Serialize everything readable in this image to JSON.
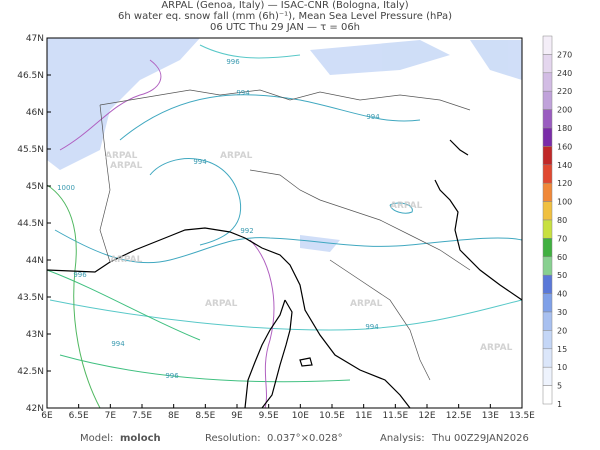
{
  "header": {
    "lines": [
      "ARPAL (Genoa, Italy)  —  ISAC-CNR (Bologna, Italy)",
      "6h water eq. snow fall (mm (6h)⁻¹), Mean Sea Level Pressure (hPa)",
      "06 UTC Thu 29 JAN  —  τ = 06h"
    ]
  },
  "map": {
    "lon_ticks": [
      "6E",
      "6.5E",
      "7E",
      "7.5E",
      "8E",
      "8.5E",
      "9E",
      "9.5E",
      "10E",
      "10.5E",
      "11E",
      "11.5E",
      "12E",
      "12.5E",
      "13E",
      "13.5E"
    ],
    "lat_ticks": [
      "42N",
      "42.5N",
      "43N",
      "43.5N",
      "44N",
      "44.5N",
      "45N",
      "45.5N",
      "46N",
      "46.5N",
      "47N"
    ],
    "contour_labels": [
      996,
      994,
      994,
      994,
      1000,
      992,
      996,
      994,
      994,
      996
    ],
    "watermark": "ARPAL"
  },
  "colorbar": {
    "labels": [
      270,
      240,
      220,
      200,
      180,
      160,
      140,
      120,
      100,
      80,
      70,
      60,
      50,
      40,
      30,
      20,
      15,
      10,
      5,
      1
    ],
    "colors": [
      "#f4eef8",
      "#e4d6ee",
      "#d2bce4",
      "#c0a2da",
      "#9a5cc0",
      "#7a2ca8",
      "#c02828",
      "#e04830",
      "#f08838",
      "#f0c040",
      "#c8e040",
      "#40b040",
      "#88d090",
      "#5a78d8",
      "#7fa0e8",
      "#a8c0f0",
      "#c4d6f6",
      "#dbe6fa",
      "#eef3fd",
      "#ffffff"
    ]
  },
  "footer": {
    "model_label": "Model:",
    "model": "moloch",
    "resolution_label": "Resolution:",
    "resolution": "0.037°×0.028°",
    "analysis_label": "Analysis:",
    "analysis": "Thu 00Z29JAN2026"
  }
}
